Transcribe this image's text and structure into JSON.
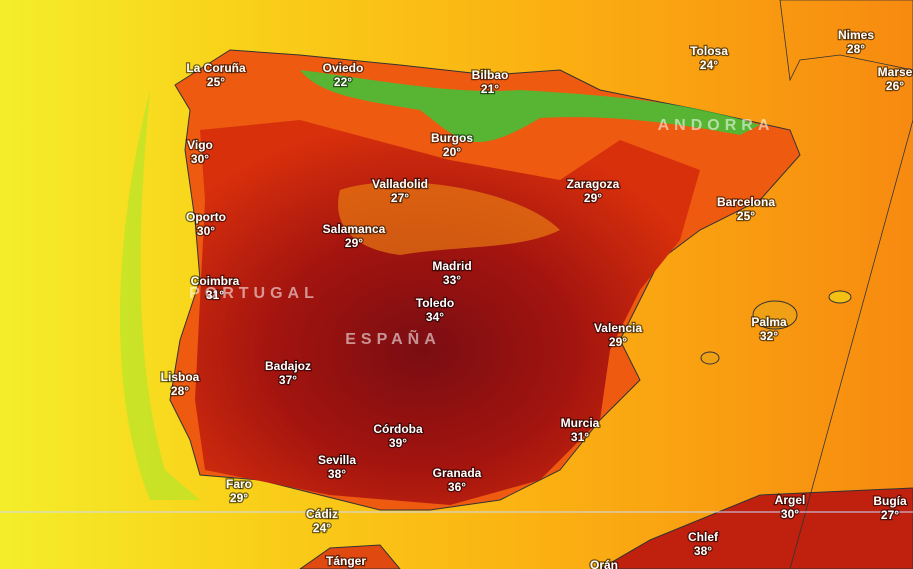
{
  "places": [
    {
      "name": "La Coruña",
      "temp": "25°"
    },
    {
      "name": "Oviedo",
      "temp": "22°"
    },
    {
      "name": "Bilbao",
      "temp": "21°"
    },
    {
      "name": "Tolosa",
      "temp": "24°"
    },
    {
      "name": "Nimes",
      "temp": "28°"
    },
    {
      "name": "Marse",
      "temp": "26°"
    },
    {
      "name": "Vigo",
      "temp": "30°"
    },
    {
      "name": "Burgos",
      "temp": "20°"
    },
    {
      "name": "Valladolid",
      "temp": "27°"
    },
    {
      "name": "Zaragoza",
      "temp": "29°"
    },
    {
      "name": "Barcelona",
      "temp": "25°"
    },
    {
      "name": "Oporto",
      "temp": "30°"
    },
    {
      "name": "Salamanca",
      "temp": "29°"
    },
    {
      "name": "Madrid",
      "temp": "33°"
    },
    {
      "name": "Coimbra",
      "temp": "31°"
    },
    {
      "name": "Toledo",
      "temp": "34°"
    },
    {
      "name": "Valencia",
      "temp": "29°"
    },
    {
      "name": "Palma",
      "temp": "32°"
    },
    {
      "name": "Badajoz",
      "temp": "37°"
    },
    {
      "name": "Lisboa",
      "temp": "28°"
    },
    {
      "name": "Córdoba",
      "temp": "39°"
    },
    {
      "name": "Murcia",
      "temp": "31°"
    },
    {
      "name": "Sevilla",
      "temp": "38°"
    },
    {
      "name": "Granada",
      "temp": "36°"
    },
    {
      "name": "Faro",
      "temp": "29°"
    },
    {
      "name": "Argel",
      "temp": "30°"
    },
    {
      "name": "Bugía",
      "temp": "27°"
    },
    {
      "name": "Cádiz",
      "temp": "24°"
    },
    {
      "name": "Chlef",
      "temp": "38°"
    },
    {
      "name": "Tánger"
    },
    {
      "name": "Orán"
    }
  ],
  "regions": [
    "PORTUGAL",
    "ESPAÑA",
    "ANDORRA"
  ]
}
